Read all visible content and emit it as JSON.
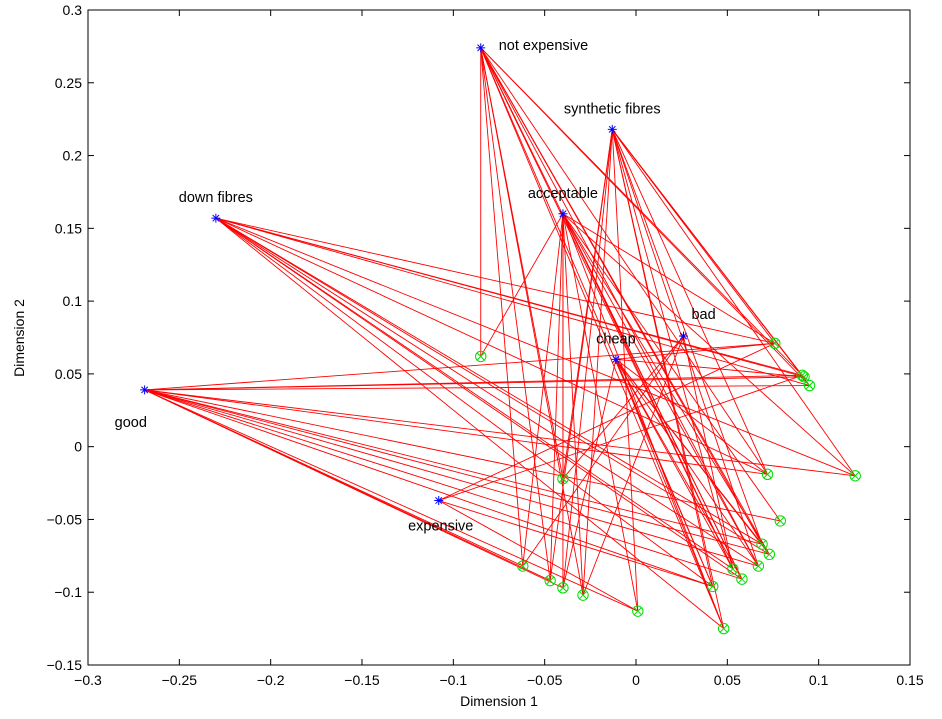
{
  "chart_data": {
    "type": "scatter",
    "title": "",
    "xlabel": "Dimension 1",
    "ylabel": "Dimension 2",
    "xlim": [
      -0.3,
      0.15
    ],
    "ylim": [
      -0.15,
      0.3
    ],
    "x_ticks": [
      -0.3,
      -0.25,
      -0.2,
      -0.15,
      -0.1,
      -0.05,
      0,
      0.05,
      0.1,
      0.15
    ],
    "x_tick_labels": [
      "−0.3",
      "−0.25",
      "−0.2",
      "−0.15",
      "−0.1",
      "−0.05",
      "0",
      "0.05",
      "0.1",
      "0.15"
    ],
    "y_ticks": [
      -0.15,
      -0.1,
      -0.05,
      0,
      0.05,
      0.1,
      0.15,
      0.2,
      0.25,
      0.3
    ],
    "y_tick_labels": [
      "−0.15",
      "−0.1",
      "−0.05",
      "0",
      "0.05",
      "0.1",
      "0.15",
      "0.2",
      "0.25",
      "0.3"
    ],
    "grid": false,
    "colors": {
      "attribute": "#0000ff",
      "object": "#00dd00",
      "link": "#ff0000"
    },
    "attributes": [
      {
        "label": "not expensive",
        "x": -0.085,
        "y": 0.274,
        "label_anchor": "right"
      },
      {
        "label": "synthetic fibres",
        "x": -0.013,
        "y": 0.218,
        "label_anchor": "above"
      },
      {
        "label": "acceptable",
        "x": -0.04,
        "y": 0.16,
        "label_anchor": "above"
      },
      {
        "label": "down fibres",
        "x": -0.23,
        "y": 0.157,
        "label_anchor": "above"
      },
      {
        "label": "bad",
        "x": 0.026,
        "y": 0.076,
        "label_anchor": "above-right"
      },
      {
        "label": "cheap",
        "x": -0.011,
        "y": 0.06,
        "label_anchor": "above"
      },
      {
        "label": "good",
        "x": -0.269,
        "y": 0.039,
        "label_anchor": "below-left"
      },
      {
        "label": "expensive",
        "x": -0.108,
        "y": -0.037,
        "label_anchor": "below"
      }
    ],
    "objects": [
      {
        "x": -0.085,
        "y": 0.062
      },
      {
        "x": 0.076,
        "y": 0.071
      },
      {
        "x": 0.091,
        "y": 0.049
      },
      {
        "x": 0.092,
        "y": 0.048
      },
      {
        "x": 0.095,
        "y": 0.042
      },
      {
        "x": -0.04,
        "y": -0.022
      },
      {
        "x": 0.072,
        "y": -0.019
      },
      {
        "x": 0.12,
        "y": -0.02
      },
      {
        "x": 0.079,
        "y": -0.051
      },
      {
        "x": 0.069,
        "y": -0.067
      },
      {
        "x": 0.073,
        "y": -0.074
      },
      {
        "x": 0.067,
        "y": -0.082
      },
      {
        "x": 0.053,
        "y": -0.084
      },
      {
        "x": 0.058,
        "y": -0.091
      },
      {
        "x": -0.062,
        "y": -0.082
      },
      {
        "x": -0.047,
        "y": -0.092
      },
      {
        "x": -0.04,
        "y": -0.097
      },
      {
        "x": -0.029,
        "y": -0.102
      },
      {
        "x": 0.042,
        "y": -0.096
      },
      {
        "x": 0.001,
        "y": -0.113
      },
      {
        "x": 0.048,
        "y": -0.125
      }
    ],
    "links": [
      [
        "not expensive",
        [
          0,
          2,
          4,
          5,
          6,
          9,
          10,
          11,
          12,
          13,
          14,
          15,
          17,
          18,
          20
        ]
      ],
      [
        "synthetic fibres",
        [
          1,
          2,
          4,
          5,
          6,
          7,
          9,
          11,
          12,
          15,
          16,
          17,
          18,
          19,
          20
        ]
      ],
      [
        "acceptable",
        [
          0,
          1,
          5,
          7,
          8,
          10,
          11,
          12,
          13,
          14,
          15,
          16,
          17,
          19,
          20
        ]
      ],
      [
        "down fibres",
        [
          1,
          2,
          3,
          4,
          6,
          7,
          9,
          10,
          11,
          12,
          13,
          18,
          20
        ]
      ],
      [
        "bad",
        [
          5,
          12,
          14,
          17
        ]
      ],
      [
        "cheap",
        [
          1,
          3,
          6,
          9,
          10,
          11,
          12,
          13,
          16,
          18,
          20
        ]
      ],
      [
        "good",
        [
          1,
          2,
          3,
          4,
          6,
          7,
          8,
          9,
          10,
          11,
          13,
          14,
          15,
          16,
          18,
          19
        ]
      ],
      [
        "expensive",
        [
          1,
          2,
          18,
          19
        ]
      ]
    ]
  }
}
